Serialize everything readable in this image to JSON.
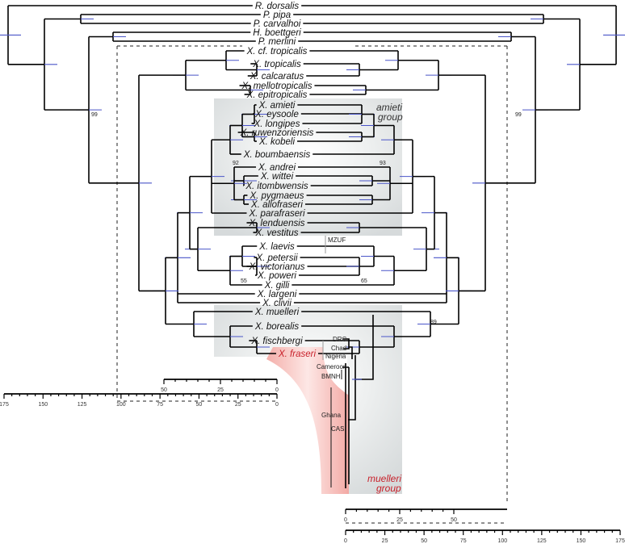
{
  "figure": {
    "taxa": [
      "R. dorsalis",
      "P. pipa",
      "P. carvalhoi",
      "H. boettgeri",
      "P. merlini",
      "X. cf. tropicalis",
      "X. tropicalis",
      "X. calcaratus",
      "X. mellotropicalis",
      "X. epitropicalis",
      "X. amieti",
      "X. eysoole",
      "X. longipes",
      "X. ruwenzoriensis",
      "X. kobeli",
      "X. boumbaensis",
      "X. andrei",
      "X. wittei",
      "X. itombwensis",
      "X. pygmaeus",
      "X. allofraseri",
      "X. parafraseri",
      "X. lenduensis",
      "X. vestitus",
      "X. laevis",
      "X. petersii",
      "X. victorianus",
      "X. poweri",
      "X. gilli",
      "X. largeni",
      "X. clivii",
      "X. muelleri",
      "X. borealis",
      "X. fischbergi",
      "X. fraseri"
    ],
    "highlighted_taxon": "X. fraseri",
    "groups": {
      "amieti": {
        "line1": "amieti",
        "line2": "group"
      },
      "muelleri": {
        "line1": "muelleri",
        "line2": "group"
      }
    },
    "localities": {
      "mzuf": "MZUF",
      "drc": "DRC",
      "chad": "Chad",
      "nigeria": "Nigeria",
      "cameroon": "Cameroon",
      "bmnh": "BMNH",
      "ghana": "Ghana",
      "cas": "CAS"
    },
    "support": {
      "left_root": "99",
      "right_root": "99",
      "left_amieti": "92",
      "right_amieti": "93",
      "left_laevis": "55",
      "right_laevis": "65",
      "right_muelleri": "89"
    },
    "axes": {
      "left_inset_ticks": [
        "50",
        "25",
        "0"
      ],
      "left_main_ticks": [
        "175",
        "150",
        "125",
        "100",
        "75",
        "50",
        "25",
        "0"
      ],
      "right_inset_ticks": [
        "0",
        "25",
        "50"
      ],
      "right_main_ticks": [
        "0",
        "25",
        "50",
        "75",
        "100",
        "125",
        "150",
        "175"
      ]
    },
    "colors": {
      "highlight": "#c8202a",
      "hpd_bar": "#4a55c8",
      "group_shade": "#dfe2e3",
      "fraseri_shade": "#f4b8b4"
    }
  }
}
